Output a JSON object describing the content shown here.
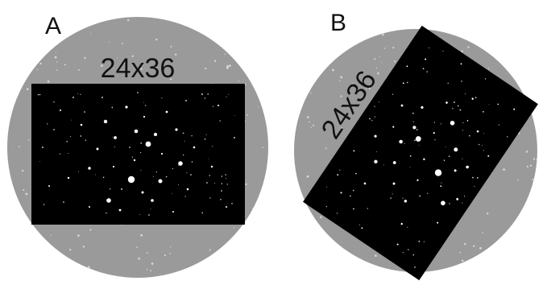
{
  "panels": [
    {
      "letter": "A",
      "frame_label": "24x36",
      "frame_rotation_deg": 0
    },
    {
      "letter": "B",
      "frame_label": "24x36",
      "frame_rotation_deg": -56
    }
  ],
  "colors": {
    "background": "#ffffff",
    "field_circle": "#9a9a9a",
    "sensor_frame": "#000000",
    "star": "#ffffff",
    "text": "#111111"
  }
}
